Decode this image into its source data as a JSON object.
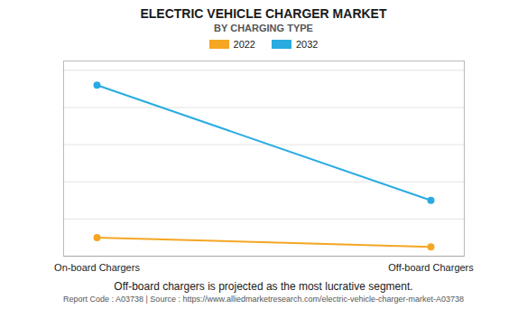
{
  "chart_data": {
    "type": "line",
    "title": "ELECTRIC VEHICLE CHARGER MARKET",
    "subtitle": "BY CHARGING TYPE",
    "categories": [
      "On-board Chargers",
      "Off-board Chargers"
    ],
    "series": [
      {
        "name": "2022",
        "color": "#F5A623",
        "values": [
          0.1,
          0.05
        ]
      },
      {
        "name": "2032",
        "color": "#29ABE2",
        "values": [
          0.92,
          0.3
        ]
      }
    ],
    "ylim": [
      0,
      1.05
    ],
    "yticks": [
      0,
      0.2,
      0.4,
      0.6,
      0.8,
      1
    ],
    "grid": true,
    "tick_labels": "x",
    "marker": "circle",
    "annotations": [
      "Off-board chargers is projected as the most lucrative segment.",
      "Report Code : A03738  |  Source : https://www.alliedmarketresearch.com/electric-vehicle-charger-market-A03738"
    ]
  }
}
